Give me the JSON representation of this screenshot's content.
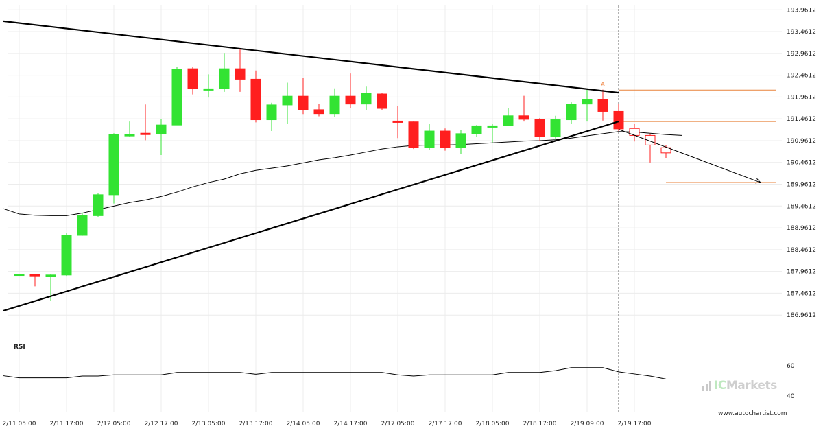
{
  "chart_data": {
    "type": "candlestick",
    "y_ticks": [
      "193.9612",
      "193.4612",
      "192.9612",
      "192.4612",
      "191.9612",
      "191.4612",
      "190.9612",
      "190.4612",
      "189.9612",
      "189.4612",
      "188.9612",
      "188.4612",
      "187.9612",
      "187.4612",
      "186.9612"
    ],
    "ylim": [
      186.76,
      194.06
    ],
    "x_ticks": [
      "2/11 05:00",
      "2/11 17:00",
      "2/12 05:00",
      "2/12 17:00",
      "2/13 05:00",
      "2/13 17:00",
      "2/14 05:00",
      "2/14 17:00",
      "2/17 05:00",
      "2/17 17:00",
      "2/18 05:00",
      "2/18 17:00",
      "2/19 09:00",
      "2/19 17:00"
    ],
    "candles": [
      {
        "i": 0,
        "o": 187.9,
        "h": 187.9,
        "l": 187.9,
        "c": 187.9
      },
      {
        "i": 1,
        "o": 187.89,
        "h": 187.9,
        "l": 187.62,
        "c": 187.86
      },
      {
        "i": 2,
        "o": 187.86,
        "h": 187.9,
        "l": 187.28,
        "c": 187.88
      },
      {
        "i": 3,
        "o": 187.88,
        "h": 188.85,
        "l": 187.86,
        "c": 188.79
      },
      {
        "i": 4,
        "o": 188.79,
        "h": 189.31,
        "l": 188.78,
        "c": 189.24
      },
      {
        "i": 5,
        "o": 189.24,
        "h": 189.75,
        "l": 189.2,
        "c": 189.72
      },
      {
        "i": 6,
        "o": 189.72,
        "h": 191.13,
        "l": 189.52,
        "c": 191.1
      },
      {
        "i": 7,
        "o": 191.1,
        "h": 191.4,
        "l": 191.04,
        "c": 191.1
      },
      {
        "i": 8,
        "o": 191.13,
        "h": 191.79,
        "l": 190.97,
        "c": 191.11
      },
      {
        "i": 9,
        "o": 191.11,
        "h": 191.46,
        "l": 190.63,
        "c": 191.32
      },
      {
        "i": 10,
        "o": 191.32,
        "h": 192.65,
        "l": 191.32,
        "c": 192.6
      },
      {
        "i": 11,
        "o": 192.61,
        "h": 192.65,
        "l": 192.02,
        "c": 192.15
      },
      {
        "i": 12,
        "o": 192.15,
        "h": 192.48,
        "l": 191.95,
        "c": 192.15
      },
      {
        "i": 13,
        "o": 192.15,
        "h": 192.97,
        "l": 192.08,
        "c": 192.61
      },
      {
        "i": 14,
        "o": 192.61,
        "h": 193.08,
        "l": 192.08,
        "c": 192.37
      },
      {
        "i": 15,
        "o": 192.37,
        "h": 192.57,
        "l": 191.38,
        "c": 191.44
      },
      {
        "i": 16,
        "o": 191.44,
        "h": 191.83,
        "l": 191.18,
        "c": 191.78
      },
      {
        "i": 17,
        "o": 191.78,
        "h": 192.29,
        "l": 191.35,
        "c": 191.98
      },
      {
        "i": 18,
        "o": 191.98,
        "h": 192.4,
        "l": 191.57,
        "c": 191.67
      },
      {
        "i": 19,
        "o": 191.67,
        "h": 191.8,
        "l": 191.52,
        "c": 191.58
      },
      {
        "i": 20,
        "o": 191.58,
        "h": 192.16,
        "l": 191.5,
        "c": 191.98
      },
      {
        "i": 21,
        "o": 191.98,
        "h": 192.5,
        "l": 191.7,
        "c": 191.8
      },
      {
        "i": 22,
        "o": 191.8,
        "h": 192.2,
        "l": 191.66,
        "c": 192.04
      },
      {
        "i": 23,
        "o": 192.03,
        "h": 192.06,
        "l": 191.66,
        "c": 191.7
      },
      {
        "i": 24,
        "o": 191.41,
        "h": 191.76,
        "l": 191.02,
        "c": 191.4
      },
      {
        "i": 25,
        "o": 191.39,
        "h": 191.4,
        "l": 190.77,
        "c": 190.8
      },
      {
        "i": 26,
        "o": 190.8,
        "h": 191.35,
        "l": 190.75,
        "c": 191.18
      },
      {
        "i": 27,
        "o": 191.18,
        "h": 191.24,
        "l": 190.73,
        "c": 190.8
      },
      {
        "i": 28,
        "o": 190.8,
        "h": 191.2,
        "l": 190.66,
        "c": 191.12
      },
      {
        "i": 29,
        "o": 191.12,
        "h": 191.32,
        "l": 191.04,
        "c": 191.3
      },
      {
        "i": 30,
        "o": 191.3,
        "h": 191.34,
        "l": 190.92,
        "c": 191.3
      },
      {
        "i": 31,
        "o": 191.3,
        "h": 191.7,
        "l": 191.3,
        "c": 191.53
      },
      {
        "i": 32,
        "o": 191.53,
        "h": 191.99,
        "l": 191.4,
        "c": 191.45
      },
      {
        "i": 33,
        "o": 191.45,
        "h": 191.48,
        "l": 190.96,
        "c": 191.06
      },
      {
        "i": 34,
        "o": 191.06,
        "h": 191.53,
        "l": 191.01,
        "c": 191.44
      },
      {
        "i": 35,
        "o": 191.44,
        "h": 191.84,
        "l": 191.35,
        "c": 191.8
      },
      {
        "i": 36,
        "o": 191.8,
        "h": 192.13,
        "l": 191.4,
        "c": 191.91
      },
      {
        "i": 37,
        "o": 191.91,
        "h": 192.13,
        "l": 191.42,
        "c": 191.63
      },
      {
        "i": 38,
        "o": 191.63,
        "h": 191.8,
        "l": 191.18,
        "c": 191.23
      }
    ],
    "projected_candles": [
      {
        "i": 39,
        "o": 191.24,
        "h": 191.35,
        "l": 190.94,
        "c": 191.08
      },
      {
        "i": 40,
        "o": 191.08,
        "h": 191.12,
        "l": 190.46,
        "c": 190.86
      },
      {
        "i": 41,
        "o": 190.8,
        "h": 190.85,
        "l": 190.56,
        "c": 190.68
      }
    ],
    "moving_average": [
      [
        -1,
        189.4
      ],
      [
        0,
        189.28
      ],
      [
        1,
        189.25
      ],
      [
        2,
        189.24
      ],
      [
        3,
        189.24
      ],
      [
        4,
        189.3
      ],
      [
        5,
        189.38
      ],
      [
        6,
        189.46
      ],
      [
        7,
        189.54
      ],
      [
        8,
        189.6
      ],
      [
        9,
        189.68
      ],
      [
        10,
        189.78
      ],
      [
        11,
        189.9
      ],
      [
        12,
        190.0
      ],
      [
        13,
        190.08
      ],
      [
        14,
        190.2
      ],
      [
        15,
        190.28
      ],
      [
        16,
        190.33
      ],
      [
        17,
        190.38
      ],
      [
        18,
        190.45
      ],
      [
        19,
        190.52
      ],
      [
        20,
        190.57
      ],
      [
        21,
        190.63
      ],
      [
        22,
        190.7
      ],
      [
        23,
        190.77
      ],
      [
        24,
        190.82
      ],
      [
        25,
        190.85
      ],
      [
        26,
        190.86
      ],
      [
        27,
        190.86
      ],
      [
        28,
        190.87
      ],
      [
        29,
        190.89
      ],
      [
        30,
        190.91
      ],
      [
        31,
        190.93
      ],
      [
        32,
        190.95
      ],
      [
        33,
        190.96
      ],
      [
        34,
        190.98
      ],
      [
        35,
        191.02
      ],
      [
        36,
        191.07
      ],
      [
        37,
        191.12
      ],
      [
        38,
        191.17
      ],
      [
        39,
        191.16
      ],
      [
        40,
        191.13
      ],
      [
        41,
        191.1
      ],
      [
        42,
        191.08
      ]
    ],
    "trendlines": [
      {
        "name": "resistance",
        "from": [
          -1,
          193.7
        ],
        "to": [
          38,
          192.06
        ]
      },
      {
        "name": "support",
        "from": [
          -1,
          187.06
        ],
        "to": [
          38,
          191.4
        ]
      },
      {
        "name": "forecast",
        "from": [
          38,
          191.22
        ],
        "to": [
          47,
          190.0
        ]
      }
    ],
    "levels": [
      {
        "value": 192.12,
        "from": 38,
        "to": 48
      },
      {
        "value": 191.4,
        "from": 38,
        "to": 48
      },
      {
        "value": 190.0,
        "from": 41,
        "to": 48
      }
    ],
    "breakout_index": 38,
    "pattern_label": "A",
    "pattern_label_index": 37,
    "pattern_label_value": 192.2,
    "rsi": {
      "label": "RSI",
      "ticks": [
        "60",
        "40"
      ],
      "ylim": [
        34,
        66
      ],
      "values": [
        [
          -1,
          53.4
        ],
        [
          0,
          52.0
        ],
        [
          1,
          52.0
        ],
        [
          2,
          52.0
        ],
        [
          3,
          52.0
        ],
        [
          4,
          53.2
        ],
        [
          5,
          53.2
        ],
        [
          6,
          54.0
        ],
        [
          7,
          54.0
        ],
        [
          8,
          54.0
        ],
        [
          9,
          54.0
        ],
        [
          10,
          55.6
        ],
        [
          11,
          55.6
        ],
        [
          12,
          55.6
        ],
        [
          13,
          55.6
        ],
        [
          14,
          55.6
        ],
        [
          15,
          54.4
        ],
        [
          16,
          55.6
        ],
        [
          17,
          55.6
        ],
        [
          18,
          55.6
        ],
        [
          19,
          55.6
        ],
        [
          20,
          55.6
        ],
        [
          21,
          55.6
        ],
        [
          22,
          55.6
        ],
        [
          23,
          55.6
        ],
        [
          24,
          54.0
        ],
        [
          25,
          53.2
        ],
        [
          26,
          54.0
        ],
        [
          27,
          54.0
        ],
        [
          28,
          54.0
        ],
        [
          29,
          54.0
        ],
        [
          30,
          54.0
        ],
        [
          31,
          55.6
        ],
        [
          32,
          55.6
        ],
        [
          33,
          55.6
        ],
        [
          34,
          56.8
        ],
        [
          35,
          58.8
        ],
        [
          36,
          58.8
        ],
        [
          37,
          58.8
        ],
        [
          38,
          56.0
        ],
        [
          39,
          54.6
        ],
        [
          40,
          53.2
        ],
        [
          41,
          51.2
        ]
      ]
    }
  },
  "watermark": {
    "brand_ic": "IC",
    "brand_rest": "Markets"
  },
  "site": "www.autochartist.com",
  "colors": {
    "bull": "#33e333",
    "bear": "#ff1f1f",
    "level": "#e8823a",
    "pattern_label": "#f08a4a",
    "grid": "#ececec",
    "trend": "#000000"
  }
}
